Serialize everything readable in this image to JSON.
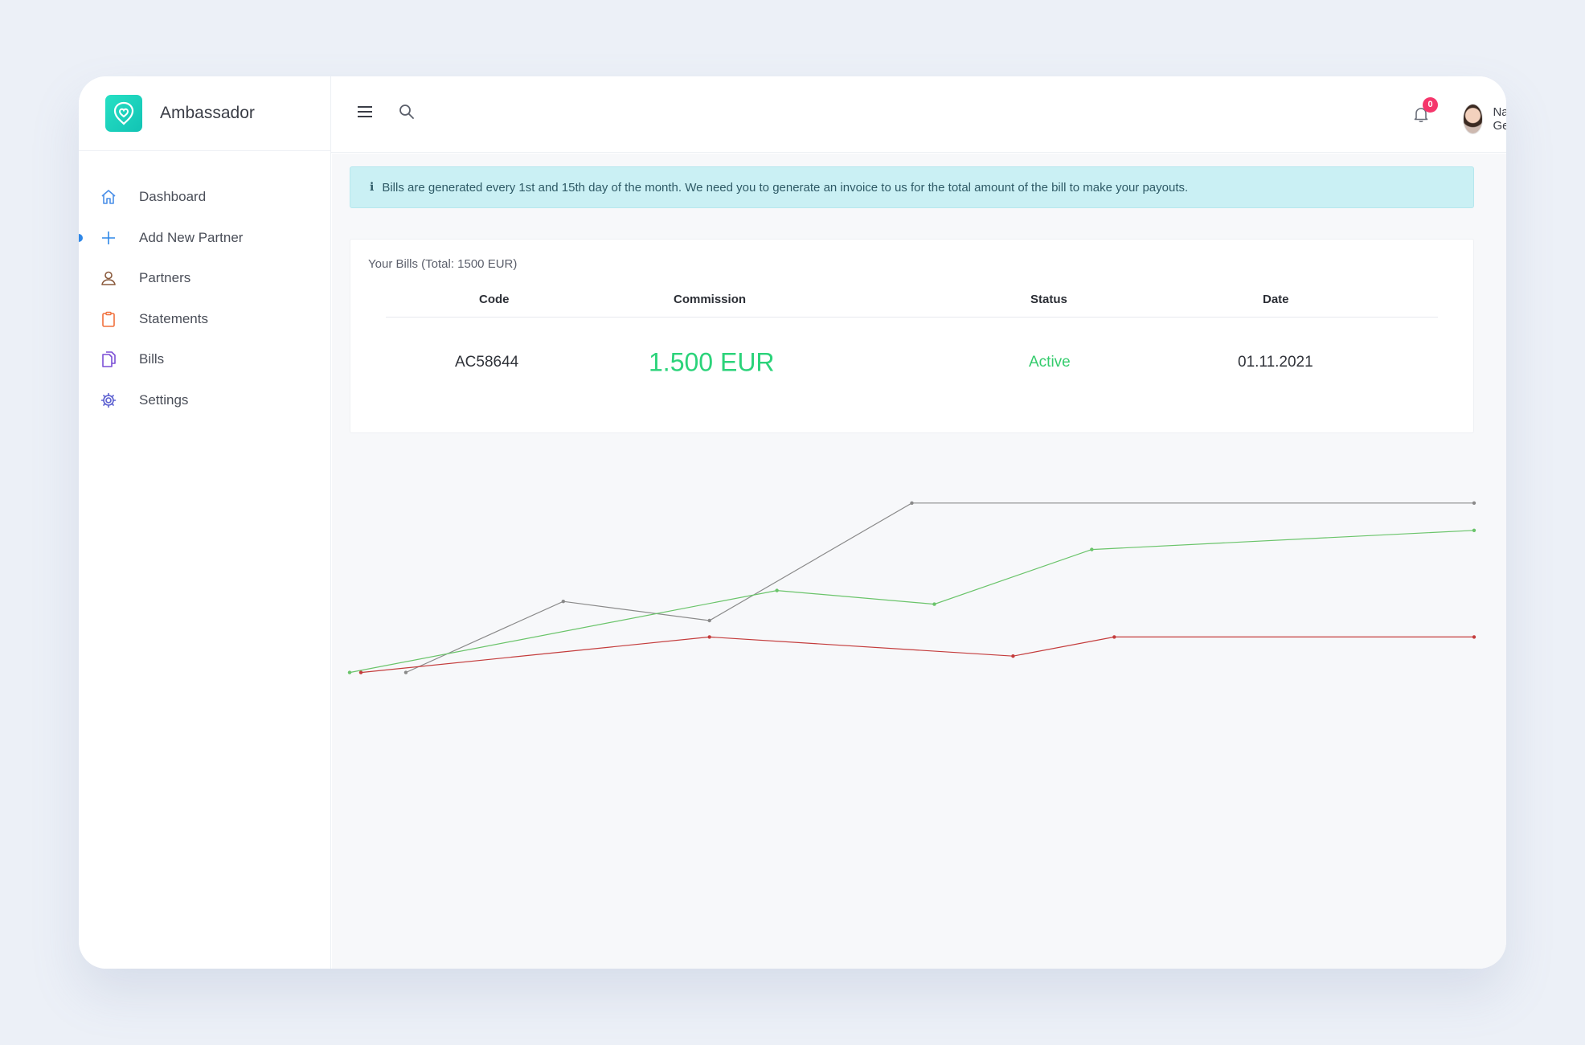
{
  "brand": {
    "name": "Ambassador"
  },
  "sidebar": {
    "items": [
      {
        "label": "Dashboard",
        "icon": "home-icon",
        "color": "#4a8fe8"
      },
      {
        "label": "Add New Partner",
        "icon": "plus-icon",
        "color": "#2f88e8"
      },
      {
        "label": "Partners",
        "icon": "user-icon",
        "color": "#8a5a3c"
      },
      {
        "label": "Statements",
        "icon": "clipboard-icon",
        "color": "#f0703c"
      },
      {
        "label": "Bills",
        "icon": "documents-icon",
        "color": "#7b4fd6"
      },
      {
        "label": "Settings",
        "icon": "gear-icon",
        "color": "#5b5fd0"
      }
    ],
    "active_index": 1
  },
  "header": {
    "notifications": "0",
    "user_name": "Nazlı Genç"
  },
  "alert": {
    "text": "Bills are generated every 1st and 15th day of the month. We need you to generate an invoice to us for the total amount of the bill to make your payouts."
  },
  "bills": {
    "title": "Your Bills (Total: 1500 EUR)",
    "columns": [
      "Code",
      "Commission",
      "Status",
      "Date"
    ],
    "rows": [
      {
        "code": "AC58644",
        "commission": "1.500 EUR",
        "status": "Active",
        "date": "01.11.2021"
      }
    ]
  },
  "colors": {
    "accent": "#2f88e8",
    "success": "#2bd37a",
    "badge": "#f5366b",
    "alert_bg": "#caf0f4"
  },
  "chart_data": {
    "type": "line",
    "title": "",
    "xlabel": "",
    "ylabel": "",
    "axes_visible": false,
    "grid": false,
    "ylim": [
      0,
      100
    ],
    "series": [
      {
        "color": "#8a8a8a",
        "points": [
          [
            5,
            16
          ],
          [
            19,
            42
          ],
          [
            32,
            35
          ],
          [
            50,
            78
          ],
          [
            100,
            78
          ]
        ]
      },
      {
        "color": "#6ac46a",
        "points": [
          [
            0,
            16
          ],
          [
            38,
            46
          ],
          [
            52,
            41
          ],
          [
            66,
            61
          ],
          [
            100,
            68
          ]
        ]
      },
      {
        "color": "#c43c3c",
        "points": [
          [
            1,
            16
          ],
          [
            32,
            29
          ],
          [
            59,
            22
          ],
          [
            68,
            29
          ],
          [
            100,
            29
          ]
        ]
      }
    ]
  }
}
